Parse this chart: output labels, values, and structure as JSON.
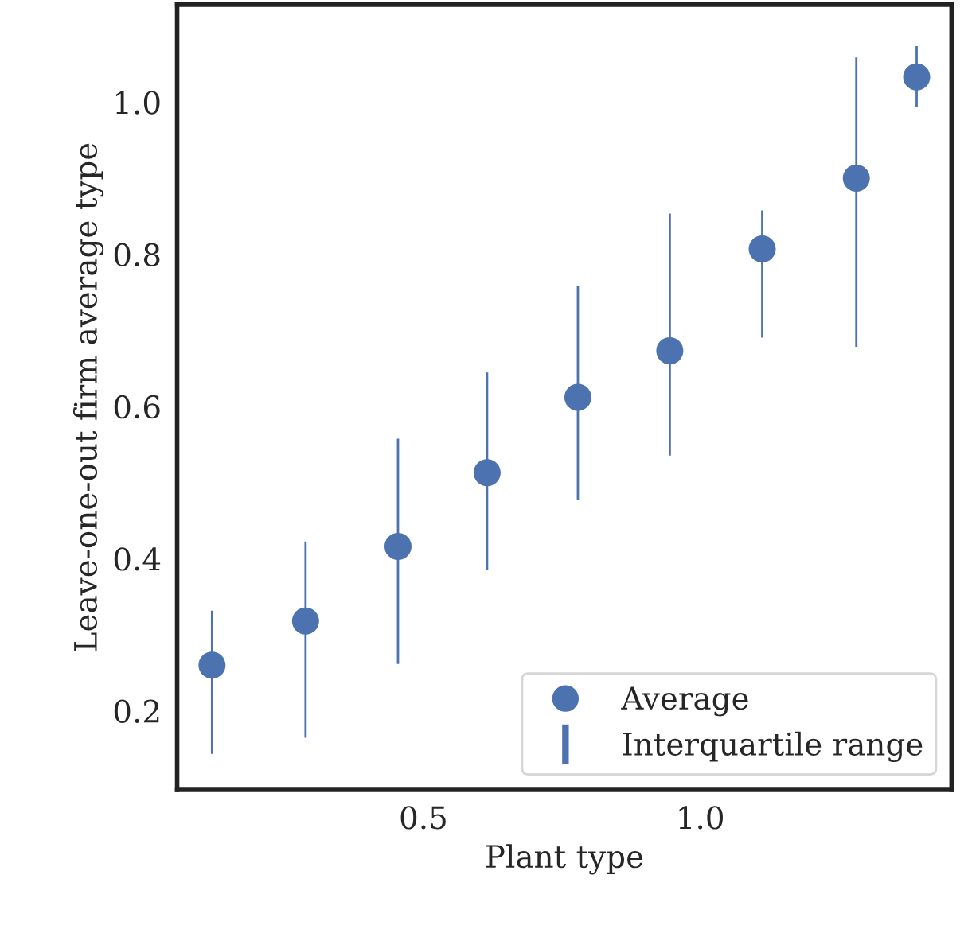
{
  "chart_data": {
    "type": "scatter",
    "xlabel": "Plant type",
    "ylabel": "Leave-one-out firm average type",
    "x": [
      0.118,
      0.287,
      0.454,
      0.615,
      0.779,
      0.945,
      1.112,
      1.282,
      1.391
    ],
    "series": [
      {
        "name": "Average",
        "color": "#4c72b0",
        "values": [
          0.26,
          0.318,
          0.416,
          0.513,
          0.612,
          0.673,
          0.807,
          0.9,
          1.033
        ]
      },
      {
        "name": "Interquartile range",
        "type": "bar",
        "color": "#4c72b0",
        "base": [
          0.142,
          0.163,
          0.26,
          0.384,
          0.476,
          0.534,
          0.689,
          0.677,
          0.992
        ],
        "values": [
          0.191,
          0.261,
          0.299,
          0.262,
          0.284,
          0.321,
          0.17,
          0.383,
          0.083
        ]
      }
    ],
    "xlim": [
      0.055,
      1.454
    ],
    "xticks": [
      0.5,
      {
        "value": 1,
        "label": "1.0"
      }
    ],
    "ylim": [
      0.096,
      1.128
    ],
    "yticks": [
      0.2,
      0.4,
      0.6,
      0.8,
      {
        "value": 1,
        "label": "1.0"
      }
    ],
    "marker": "circle",
    "grid": false,
    "legend": "bottom right"
  }
}
